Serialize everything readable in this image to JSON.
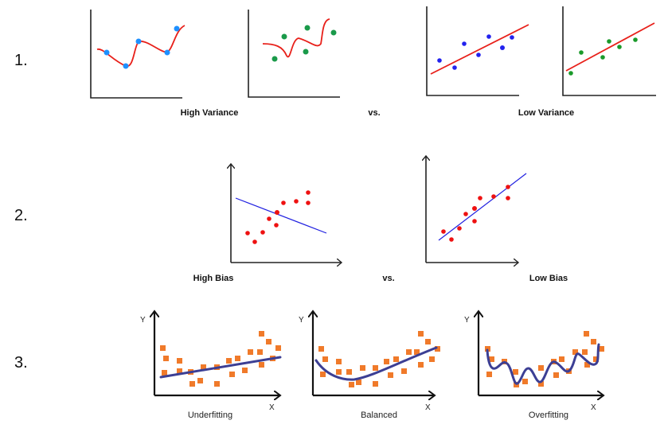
{
  "rows": [
    {
      "number": "1.",
      "left_caption": "High Variance",
      "middle": "vs.",
      "right_caption": "Low Variance"
    },
    {
      "number": "2.",
      "left_caption": "High Bias",
      "middle": "vs.",
      "right_caption": "Low Bias"
    },
    {
      "number": "3.",
      "captions": [
        "Underfitting",
        "Balanced",
        "Overfitting"
      ],
      "y_axis_label": "Y",
      "x_axis_label": "X"
    }
  ],
  "colors": {
    "fit_curve_red": "#e8201a",
    "fit_line_blue": "#2020e0",
    "fit_curve_navy": "#3c3f94",
    "points_blue": "#1e90ff",
    "points_green": "#1a9a4a",
    "points_red": "#ee1111",
    "points_orange": "#f07a2a"
  }
}
